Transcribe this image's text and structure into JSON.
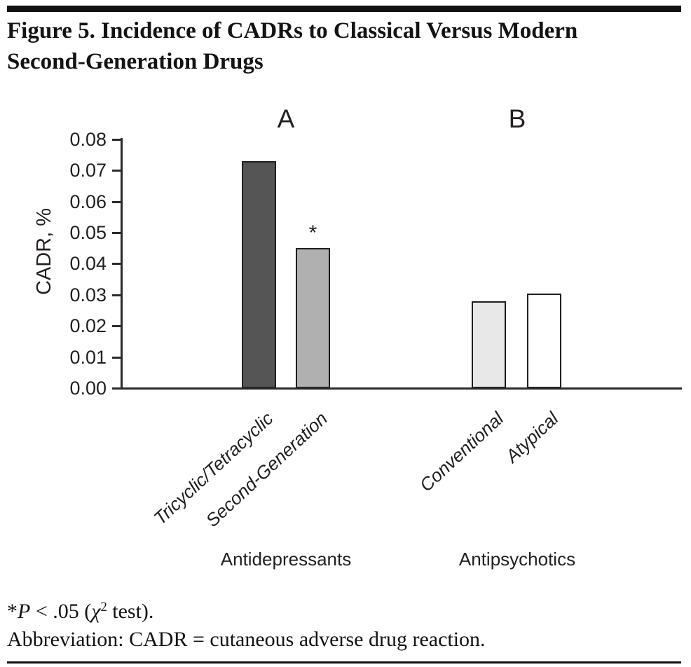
{
  "figure": {
    "title_line1": "Figure 5. Incidence of CADRs to Classical Versus Modern",
    "title_line2": "Second-Generation Drugs"
  },
  "chart_data": {
    "type": "bar",
    "title": "Incidence of CADRs to Classical Versus Modern Second-Generation Drugs",
    "xlabel": "",
    "ylabel": "CADR, %",
    "ylim": [
      0,
      0.08
    ],
    "yticks": [
      "0.00",
      "0.01",
      "0.02",
      "0.03",
      "0.04",
      "0.05",
      "0.06",
      "0.07",
      "0.08"
    ],
    "grid": false,
    "legend": false,
    "panels": [
      {
        "letter": "A",
        "group_label": "Antidepressants"
      },
      {
        "letter": "B",
        "group_label": "Antipsychotics"
      }
    ],
    "bars": [
      {
        "panel": "A",
        "category": "Tricyclic/Tetracyclic",
        "value": 0.073,
        "fill": "#555555",
        "annotation": ""
      },
      {
        "panel": "A",
        "category": "Second-Generation",
        "value": 0.045,
        "fill": "#b0b0b0",
        "annotation": "*"
      },
      {
        "panel": "B",
        "category": "Conventional",
        "value": 0.028,
        "fill": "#e8e8e8",
        "annotation": ""
      },
      {
        "panel": "B",
        "category": "Atypical",
        "value": 0.0305,
        "fill": "#ffffff",
        "annotation": ""
      }
    ]
  },
  "footnotes": {
    "line1_segments": [
      {
        "text": "*",
        "style": "normal"
      },
      {
        "text": "P",
        "style": "italic"
      },
      {
        "text": " < .05 (",
        "style": "normal"
      },
      {
        "text": "χ",
        "style": "italic"
      },
      {
        "text": "2",
        "style": "sup"
      },
      {
        "text": " test).",
        "style": "normal"
      }
    ],
    "line2": "Abbreviation: CADR = cutaneous adverse drug reaction."
  },
  "colors": {
    "text": "#231f20",
    "axis": "#2a2a2a",
    "bar_border": "#1f1f1f",
    "rule": "#111111"
  }
}
